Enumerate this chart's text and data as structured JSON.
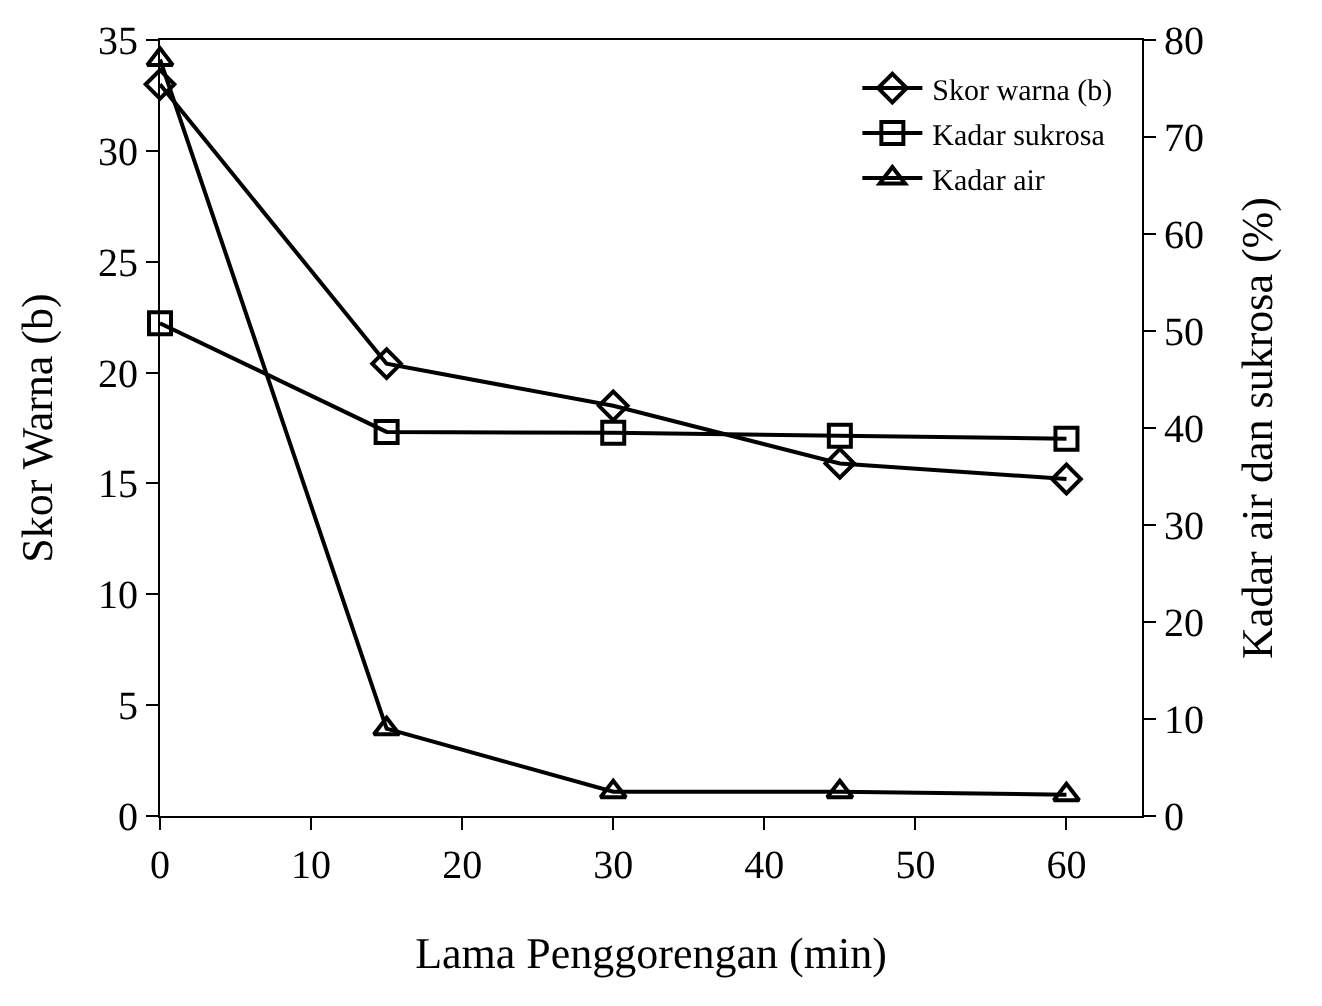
{
  "chart_data": {
    "type": "line",
    "xlabel": "Lama Penggorengan (min)",
    "ylabel": "Skor Warna (b)",
    "y2label": "Kadar air dan sukrosa (%)",
    "x": [
      0,
      15,
      30,
      45,
      60
    ],
    "xlim": [
      0,
      65
    ],
    "xticks": [
      0,
      10,
      20,
      30,
      40,
      50,
      60
    ],
    "ylim": [
      0,
      35
    ],
    "yticks": [
      0,
      5,
      10,
      15,
      20,
      25,
      30,
      35
    ],
    "y2lim": [
      0,
      80
    ],
    "y2ticks": [
      0,
      10,
      20,
      30,
      40,
      50,
      60,
      70,
      80
    ],
    "grid": false,
    "legend": "top right",
    "line_style": "solid",
    "series": [
      {
        "name": "Skor warna (b)",
        "color": "#000000",
        "marker": "diamond",
        "values": [
          33.0,
          20.4,
          18.5,
          15.9,
          15.2
        ]
      },
      {
        "name": "Kadar sukrosa",
        "color": "#000000",
        "marker": "square",
        "axis": "y2",
        "values": [
          50.8,
          39.6,
          39.5,
          39.2,
          38.9
        ]
      },
      {
        "name": "Kadar air",
        "color": "#000000",
        "marker": "triangle",
        "axis": "y2",
        "values": [
          78,
          9,
          2.5,
          2.5,
          2.2
        ]
      }
    ]
  }
}
